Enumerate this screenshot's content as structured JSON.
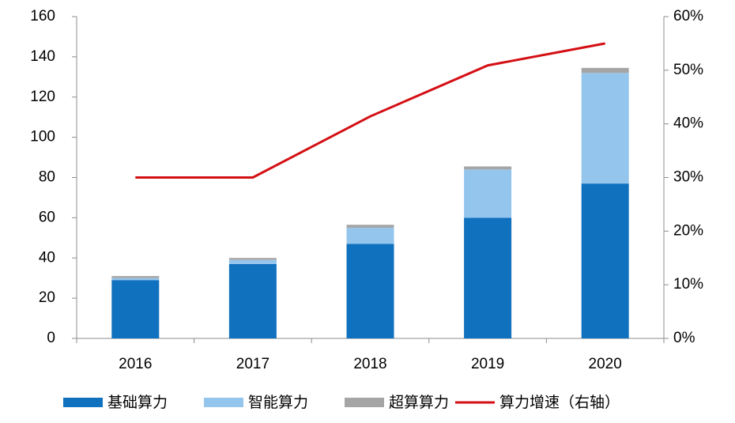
{
  "chart_data": {
    "type": "bar",
    "stacked": true,
    "categories": [
      "2016",
      "2017",
      "2018",
      "2019",
      "2020"
    ],
    "series": [
      {
        "name": "基础算力",
        "color": "#1071bf",
        "values": [
          29,
          37,
          47,
          60,
          77
        ]
      },
      {
        "name": "智能算力",
        "color": "#94c5ec",
        "values": [
          1,
          2,
          8,
          24,
          55
        ]
      },
      {
        "name": "超算算力",
        "color": "#a5a5a5",
        "values": [
          1,
          1,
          1.5,
          1.5,
          2.5
        ]
      },
      {
        "name": "算力增速（右轴）",
        "color": "#d40f14",
        "type": "line",
        "axis": "y2",
        "values": [
          30,
          30,
          41.4,
          50.9,
          55
        ]
      }
    ],
    "ylim": [
      0,
      160
    ],
    "yticks": [
      0,
      20,
      40,
      60,
      80,
      100,
      120,
      140,
      160
    ],
    "y2lim": [
      0,
      60
    ],
    "y2ticks": [
      {
        "value": 0,
        "label": "0%"
      },
      {
        "value": 10,
        "label": "10%"
      },
      {
        "value": 20,
        "label": "20%"
      },
      {
        "value": 30,
        "label": "30%"
      },
      {
        "value": 40,
        "label": "40%"
      },
      {
        "value": 50,
        "label": "50%"
      },
      {
        "value": 60,
        "label": "60%"
      }
    ],
    "grid": false,
    "legend": "bottom"
  }
}
